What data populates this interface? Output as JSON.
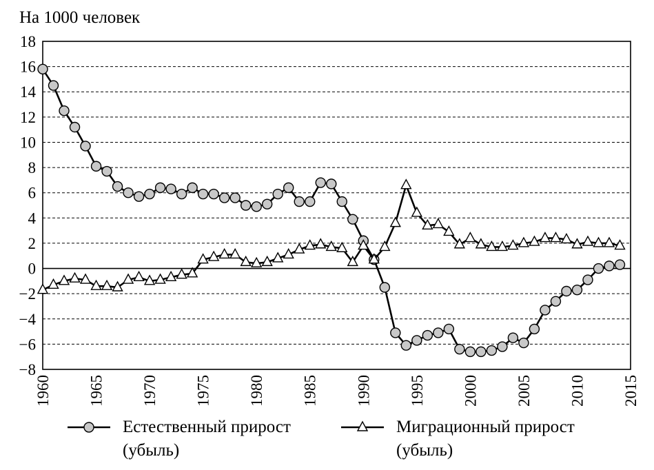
{
  "chart_data": {
    "type": "line",
    "ylabel": "На 1000 человек",
    "xlabel": "",
    "xlim": [
      1960,
      2015
    ],
    "ylim": [
      -8,
      18
    ],
    "yticks": [
      -8,
      -6,
      -4,
      -2,
      0,
      2,
      4,
      6,
      8,
      10,
      12,
      14,
      16,
      18
    ],
    "xticks": [
      1960,
      1965,
      1970,
      1975,
      1980,
      1985,
      1990,
      1995,
      2000,
      2005,
      2010,
      2015
    ],
    "grid": "horizontal dashed",
    "x": [
      1960,
      1961,
      1962,
      1963,
      1964,
      1965,
      1966,
      1967,
      1968,
      1969,
      1970,
      1971,
      1972,
      1973,
      1974,
      1975,
      1976,
      1977,
      1978,
      1979,
      1980,
      1981,
      1982,
      1983,
      1984,
      1985,
      1986,
      1987,
      1988,
      1989,
      1990,
      1991,
      1992,
      1993,
      1994,
      1995,
      1996,
      1997,
      1998,
      1999,
      2000,
      2001,
      2002,
      2003,
      2004,
      2005,
      2006,
      2007,
      2008,
      2009,
      2010,
      2011,
      2012,
      2013,
      2014
    ],
    "series": [
      {
        "name": "Естественный прирост (убыль)",
        "line1": "Естественный прирост",
        "line2": "(убыль)",
        "marker": "circle",
        "values": [
          15.8,
          14.5,
          12.5,
          11.2,
          9.7,
          8.1,
          7.7,
          6.5,
          6.0,
          5.7,
          5.9,
          6.4,
          6.3,
          5.9,
          6.4,
          5.9,
          5.9,
          5.6,
          5.6,
          5.0,
          4.9,
          5.1,
          5.9,
          6.4,
          5.3,
          5.3,
          6.8,
          6.7,
          5.3,
          3.9,
          2.2,
          0.7,
          -1.5,
          -5.1,
          -6.1,
          -5.7,
          -5.3,
          -5.1,
          -4.8,
          -6.4,
          -6.6,
          -6.6,
          -6.5,
          -6.2,
          -5.5,
          -5.9,
          -4.8,
          -3.3,
          -2.6,
          -1.8,
          -1.7,
          -0.9,
          0.0,
          0.2,
          0.3
        ]
      },
      {
        "name": "Миграционный прирост (убыль)",
        "line1": "Миграционный прирост",
        "line2": "(убыль)",
        "marker": "triangle",
        "values": [
          -1.7,
          -1.3,
          -1.0,
          -0.8,
          -0.9,
          -1.4,
          -1.4,
          -1.5,
          -0.9,
          -0.7,
          -1.0,
          -0.9,
          -0.7,
          -0.5,
          -0.4,
          0.7,
          0.9,
          1.1,
          1.1,
          0.5,
          0.4,
          0.5,
          0.8,
          1.1,
          1.5,
          1.8,
          1.9,
          1.7,
          1.6,
          0.5,
          1.8,
          0.7,
          1.7,
          3.6,
          6.6,
          4.4,
          3.4,
          3.5,
          2.9,
          1.9,
          2.4,
          1.9,
          1.7,
          1.7,
          1.8,
          2.0,
          2.1,
          2.4,
          2.4,
          2.3,
          1.9,
          2.1,
          2.0,
          2.0,
          1.8
        ]
      }
    ]
  }
}
